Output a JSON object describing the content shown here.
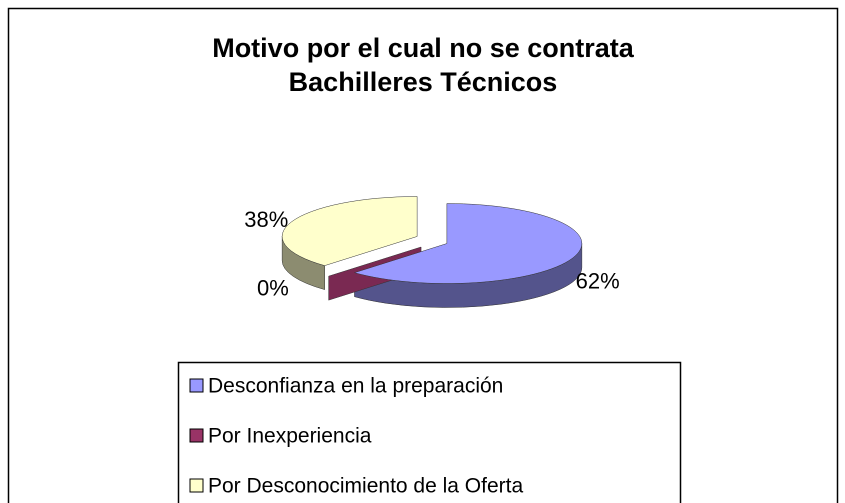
{
  "chart_data": {
    "type": "pie3d",
    "title": [
      "Motivo por el cual no se contrata",
      "Bachilleres Técnicos"
    ],
    "categories": [
      "Desconfianza en la preparación",
      "Por Inexperiencia",
      "Por Desconocimiento de la Oferta"
    ],
    "values": [
      62,
      0,
      38
    ],
    "value_labels": [
      "62%",
      "0%",
      "38%"
    ],
    "colors": [
      "#9999ff",
      "#993366",
      "#ffffcc"
    ]
  }
}
